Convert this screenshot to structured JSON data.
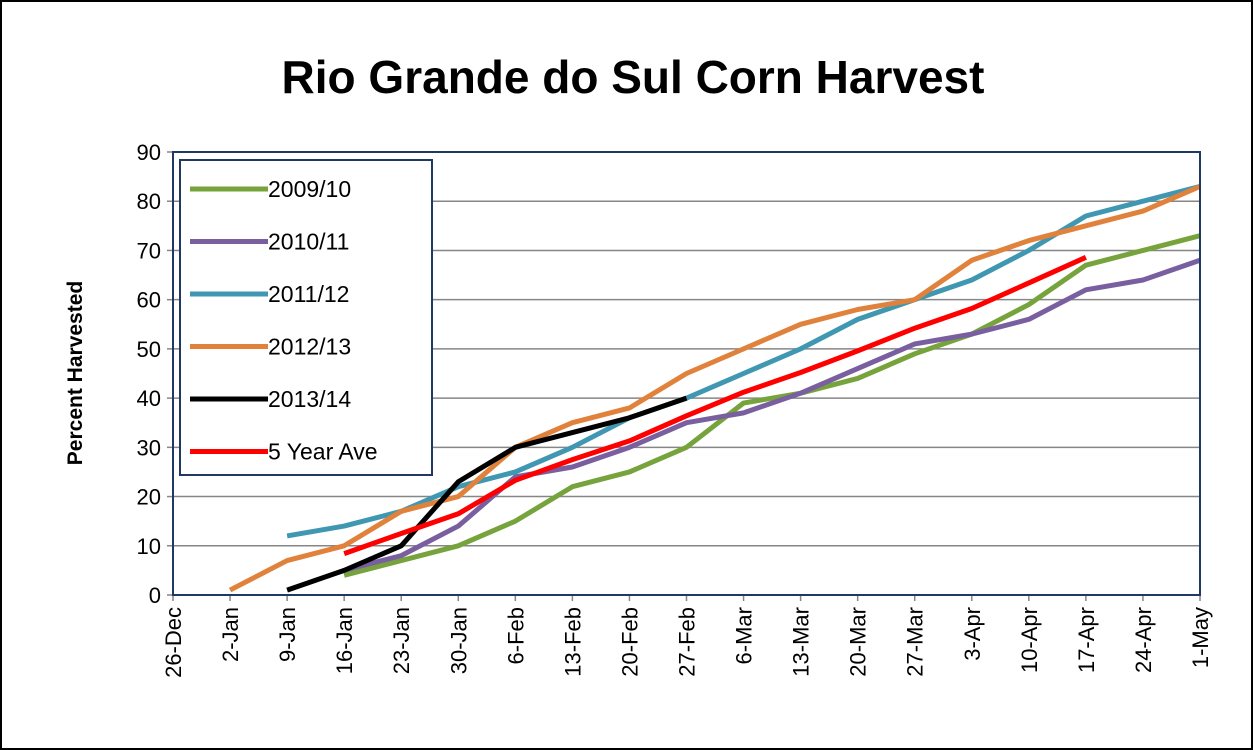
{
  "chart_data": {
    "type": "line",
    "title": "Rio Grande do Sul Corn Harvest",
    "y_label": "Percent Harvested",
    "categories": [
      "26-Dec",
      "2-Jan",
      "9-Jan",
      "16-Jan",
      "23-Jan",
      "30-Jan",
      "6-Feb",
      "13-Feb",
      "20-Feb",
      "27-Feb",
      "6-Mar",
      "13-Mar",
      "20-Mar",
      "27-Mar",
      "3-Apr",
      "10-Apr",
      "17-Apr",
      "24-Apr",
      "1-May"
    ],
    "series": [
      {
        "name": "2009/10",
        "color": "#77a33c",
        "values": [
          null,
          null,
          null,
          4,
          7,
          10,
          15,
          22,
          25,
          30,
          39,
          41,
          44,
          49,
          53,
          59,
          67,
          70,
          73
        ]
      },
      {
        "name": "2010/11",
        "color": "#7a5fa0",
        "values": [
          null,
          null,
          null,
          5,
          8,
          14,
          24,
          26,
          30,
          35,
          37,
          41,
          46,
          51,
          53,
          56,
          62,
          64,
          68
        ]
      },
      {
        "name": "2011/12",
        "color": "#3f97b1",
        "values": [
          null,
          null,
          12,
          14,
          17,
          22,
          25,
          30,
          36,
          40,
          45,
          50,
          56,
          60,
          64,
          70,
          77,
          80,
          83
        ]
      },
      {
        "name": "2012/13",
        "color": "#e0823c",
        "values": [
          null,
          1,
          7,
          10,
          17,
          20,
          30,
          35,
          38,
          45,
          50,
          55,
          58,
          60,
          68,
          72,
          75,
          78,
          83
        ]
      },
      {
        "name": "2013/14",
        "color": "#000000",
        "values": [
          null,
          null,
          1,
          5,
          10,
          23,
          30,
          33,
          36,
          40,
          null,
          null,
          null,
          null,
          null,
          null,
          null,
          null,
          null
        ]
      },
      {
        "name": "5 Year Ave",
        "color": "#ff0000",
        "values": [
          null,
          null,
          null,
          8.4,
          12.5,
          16.5,
          23.3,
          27.5,
          31.3,
          36.4,
          41.2,
          45.2,
          49.6,
          54.2,
          58.2,
          63.4,
          68.6,
          null,
          null
        ]
      }
    ],
    "ylim": [
      0,
      90
    ],
    "yticks": [
      0,
      10,
      20,
      30,
      40,
      50,
      60,
      70,
      80,
      90
    ],
    "grid": true,
    "legend": "top-left"
  }
}
